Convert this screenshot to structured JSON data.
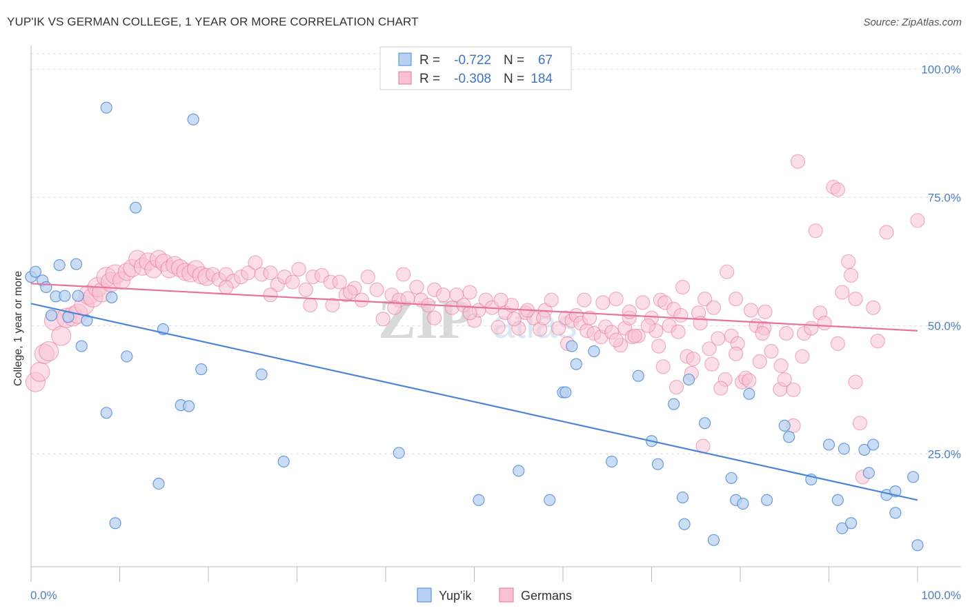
{
  "header": {
    "title": "YUP'IK VS GERMAN COLLEGE, 1 YEAR OR MORE CORRELATION CHART",
    "source": "Source: ZipAtlas.com"
  },
  "chart_data": {
    "type": "scatter",
    "title": "YUP'IK VS GERMAN COLLEGE, 1 YEAR OR MORE CORRELATION CHART",
    "xlabel": "",
    "ylabel": "College, 1 year or more",
    "xlim": [
      0,
      100
    ],
    "ylim": [
      3,
      103
    ],
    "x_tick_labels": [
      "0.0%",
      "100.0%"
    ],
    "y_ticks": [
      {
        "value": 25,
        "label": "25.0%"
      },
      {
        "value": 50,
        "label": "50.0%"
      },
      {
        "value": 75,
        "label": "75.0%"
      },
      {
        "value": 100,
        "label": "100.0%"
      }
    ],
    "grid": "dashed horizontal",
    "legend_position": "bottom-center",
    "stats_box": [
      {
        "series": "Yup'ik",
        "r_label": "R =",
        "r": "-0.722",
        "n_label": "N =",
        "n": "67"
      },
      {
        "series": "Germans",
        "r_label": "R =",
        "r": "-0.308",
        "n_label": "N =",
        "n": "184"
      }
    ],
    "watermark": "ZIPatlas",
    "series": [
      {
        "name": "Yup'ik",
        "color": "#4a86d6",
        "fill": "#b8d1f2",
        "trend": {
          "x": [
            0,
            100
          ],
          "y": [
            54.3,
            16
          ]
        },
        "points": [
          [
            0,
            59.5
          ],
          [
            0.5,
            60.5
          ],
          [
            1.3,
            58.8
          ],
          [
            1.7,
            57.5
          ],
          [
            2.3,
            52
          ],
          [
            2.8,
            55.7
          ],
          [
            3.2,
            61.8
          ],
          [
            3.8,
            55.8
          ],
          [
            4.2,
            51.7
          ],
          [
            5.1,
            62
          ],
          [
            5.3,
            55.8
          ],
          [
            5.7,
            46
          ],
          [
            6.3,
            51
          ],
          [
            8.5,
            33
          ],
          [
            8.5,
            92.5
          ],
          [
            9.1,
            55.5
          ],
          [
            9.5,
            11.5
          ],
          [
            10.8,
            44
          ],
          [
            11.8,
            73
          ],
          [
            14.4,
            19.2
          ],
          [
            14.9,
            49.3
          ],
          [
            16.9,
            34.5
          ],
          [
            17.8,
            34.3
          ],
          [
            18.3,
            90.2
          ],
          [
            19.2,
            41.5
          ],
          [
            26,
            40.5
          ],
          [
            28.5,
            23.5
          ],
          [
            41.5,
            25.2
          ],
          [
            50.5,
            16
          ],
          [
            55,
            21.7
          ],
          [
            58.5,
            16
          ],
          [
            60,
            37
          ],
          [
            60.3,
            37
          ],
          [
            61,
            46
          ],
          [
            61.5,
            42.5
          ],
          [
            63.5,
            45
          ],
          [
            65.5,
            23.5
          ],
          [
            68.5,
            40.2
          ],
          [
            70,
            27.5
          ],
          [
            70.7,
            23
          ],
          [
            72.5,
            34.7
          ],
          [
            73.5,
            16.5
          ],
          [
            73.7,
            11.3
          ],
          [
            74.2,
            39.5
          ],
          [
            76,
            31
          ],
          [
            77,
            8.2
          ],
          [
            79,
            20.3
          ],
          [
            79.5,
            16
          ],
          [
            80.3,
            15.3
          ],
          [
            81,
            36.7
          ],
          [
            83,
            16
          ],
          [
            85,
            30.5
          ],
          [
            85.5,
            28.3
          ],
          [
            88,
            20
          ],
          [
            90,
            26.8
          ],
          [
            91,
            16
          ],
          [
            91.5,
            10.5
          ],
          [
            91.7,
            26
          ],
          [
            92.5,
            11.5
          ],
          [
            94,
            25.8
          ],
          [
            94.5,
            21.3
          ],
          [
            95,
            26.8
          ],
          [
            96.5,
            17
          ],
          [
            97.5,
            17.7
          ],
          [
            97.5,
            13.5
          ],
          [
            99.5,
            20.5
          ],
          [
            100,
            7.2
          ]
        ]
      },
      {
        "name": "Germans",
        "color": "#e7739b",
        "fill": "#f8c2d3",
        "trend": {
          "x": [
            0,
            100
          ],
          "y": [
            58.2,
            49
          ]
        },
        "points": [
          [
            0.5,
            39
          ],
          [
            1,
            41
          ],
          [
            1.5,
            44.5
          ],
          [
            2,
            45
          ],
          [
            2.6,
            51
          ],
          [
            3.4,
            48
          ],
          [
            4,
            51.5
          ],
          [
            4.7,
            51.8
          ],
          [
            5.3,
            52.3
          ],
          [
            6,
            54
          ],
          [
            6.5,
            56
          ],
          [
            7,
            55.5
          ],
          [
            7.5,
            57.5
          ],
          [
            8,
            56.5
          ],
          [
            8.5,
            59.5
          ],
          [
            9,
            58.5
          ],
          [
            9.5,
            60
          ],
          [
            10.2,
            58.8
          ],
          [
            10.8,
            60.5
          ],
          [
            11.4,
            61.2
          ],
          [
            12,
            63
          ],
          [
            12.6,
            61.5
          ],
          [
            13.2,
            62.5
          ],
          [
            13.8,
            61
          ],
          [
            14.4,
            63
          ],
          [
            15,
            62.3
          ],
          [
            15.6,
            61
          ],
          [
            16.2,
            61.8
          ],
          [
            16.8,
            61.2
          ],
          [
            17.4,
            60.5
          ],
          [
            18,
            60.2
          ],
          [
            18.6,
            61
          ],
          [
            19.2,
            59.8
          ],
          [
            19.8,
            59.5
          ],
          [
            20.5,
            60
          ],
          [
            21.2,
            59
          ],
          [
            22,
            60
          ],
          [
            22.8,
            58.7
          ],
          [
            23.7,
            59.5
          ],
          [
            24.5,
            60.3
          ],
          [
            25.3,
            62.3
          ],
          [
            26,
            60
          ],
          [
            27,
            60.3
          ],
          [
            27.8,
            58
          ],
          [
            28.6,
            59.5
          ],
          [
            29.5,
            58.5
          ],
          [
            30.2,
            61
          ],
          [
            31,
            57
          ],
          [
            31.8,
            59.5
          ],
          [
            32.8,
            59.8
          ],
          [
            33.8,
            58.5
          ],
          [
            34,
            54
          ],
          [
            34.8,
            58.5
          ],
          [
            35.5,
            56
          ],
          [
            36.5,
            57.3
          ],
          [
            37.3,
            55
          ],
          [
            38,
            59.5
          ],
          [
            39,
            57
          ],
          [
            39.7,
            51.3
          ],
          [
            40.7,
            56
          ],
          [
            41.5,
            55
          ],
          [
            42,
            60
          ],
          [
            42.5,
            55.3
          ],
          [
            43.5,
            57.5
          ],
          [
            44,
            55
          ],
          [
            44.8,
            54
          ],
          [
            45.5,
            57
          ],
          [
            46.5,
            56
          ],
          [
            47.5,
            53.5
          ],
          [
            48,
            56
          ],
          [
            48.8,
            54
          ],
          [
            49.5,
            56.5
          ],
          [
            50,
            51
          ],
          [
            50.5,
            53
          ],
          [
            51.3,
            55
          ],
          [
            52,
            53.5
          ],
          [
            52.7,
            49.7
          ],
          [
            53.5,
            52.5
          ],
          [
            54.2,
            54
          ],
          [
            55,
            49.5
          ],
          [
            55.8,
            52.5
          ],
          [
            56.7,
            51.5
          ],
          [
            57.4,
            49.3
          ],
          [
            58,
            53
          ],
          [
            58.7,
            55
          ],
          [
            59.5,
            49.5
          ],
          [
            60.3,
            51.5
          ],
          [
            61,
            51
          ],
          [
            61.5,
            52
          ],
          [
            62,
            50.5
          ],
          [
            62.7,
            49
          ],
          [
            63.5,
            48.5
          ],
          [
            64.3,
            47.8
          ],
          [
            64.8,
            49.8
          ],
          [
            65.5,
            48.7
          ],
          [
            66,
            55.2
          ],
          [
            66.5,
            46.2
          ],
          [
            67,
            49.5
          ],
          [
            67.5,
            51.5
          ],
          [
            67.8,
            47.8
          ],
          [
            68.5,
            48
          ],
          [
            69,
            54.5
          ],
          [
            70,
            51.5
          ],
          [
            70.5,
            49
          ],
          [
            71,
            55
          ],
          [
            71.5,
            54.5
          ],
          [
            72,
            50
          ],
          [
            72.5,
            53.2
          ],
          [
            73,
            48.8
          ],
          [
            73.5,
            57.5
          ],
          [
            74,
            44
          ],
          [
            74.5,
            40.7
          ],
          [
            75.3,
            52.5
          ],
          [
            76,
            55.2
          ],
          [
            76.5,
            45.5
          ],
          [
            77,
            53.5
          ],
          [
            78.3,
            39.5
          ],
          [
            78.5,
            60.5
          ],
          [
            79,
            48
          ],
          [
            79.5,
            55.2
          ],
          [
            80.2,
            39
          ],
          [
            80.6,
            39.8
          ],
          [
            81.2,
            53
          ],
          [
            81.8,
            50
          ],
          [
            82.2,
            43
          ],
          [
            82.7,
            49.5
          ],
          [
            83.5,
            45
          ],
          [
            84.5,
            37.6
          ],
          [
            85.2,
            48.5
          ],
          [
            86,
            30.5
          ],
          [
            86.5,
            82
          ],
          [
            87.2,
            48.5
          ],
          [
            88.5,
            68.5
          ],
          [
            89,
            52.5
          ],
          [
            90.5,
            77
          ],
          [
            91,
            76.5
          ],
          [
            91.5,
            56.5
          ],
          [
            92.2,
            62.5
          ],
          [
            92.5,
            59.8
          ],
          [
            93,
            55.2
          ],
          [
            93.5,
            31
          ],
          [
            93.8,
            20.5
          ],
          [
            95,
            53.5
          ],
          [
            96.5,
            68.2
          ],
          [
            100,
            70.5
          ],
          [
            53,
            55
          ],
          [
            56,
            53
          ],
          [
            60.5,
            46.5
          ],
          [
            63,
            51.5
          ],
          [
            66,
            47.2
          ],
          [
            67.5,
            52.7
          ],
          [
            69.6,
            50
          ],
          [
            71.3,
            42
          ],
          [
            72.8,
            38
          ],
          [
            74.7,
            43.5
          ],
          [
            75.8,
            26.5
          ],
          [
            76.8,
            42.5
          ],
          [
            77.8,
            37.8
          ],
          [
            79.7,
            46.5
          ],
          [
            81,
            39.3
          ],
          [
            82.8,
            52.7
          ],
          [
            84.6,
            42.2
          ],
          [
            86,
            37.5
          ],
          [
            88,
            49.5
          ],
          [
            22,
            57.5
          ],
          [
            27,
            56
          ],
          [
            31.5,
            54
          ],
          [
            36,
            56.5
          ],
          [
            41,
            53.5
          ],
          [
            45.5,
            51.5
          ],
          [
            49.5,
            52.5
          ],
          [
            54.5,
            51.3
          ],
          [
            57.8,
            51.5
          ],
          [
            62.4,
            55
          ],
          [
            64.5,
            54.5
          ],
          [
            68.1,
            48
          ],
          [
            70.8,
            46
          ],
          [
            73.3,
            52
          ],
          [
            75.5,
            50.5
          ],
          [
            77.5,
            47.5
          ],
          [
            79.5,
            44.5
          ],
          [
            82.5,
            48.5
          ],
          [
            85,
            39.5
          ],
          [
            87,
            44
          ],
          [
            89.5,
            50.5
          ],
          [
            91,
            46.5
          ],
          [
            93,
            39
          ],
          [
            95.5,
            47
          ]
        ]
      }
    ]
  },
  "legend": {
    "items": [
      {
        "label": "Yup'ik",
        "color": "#4a86d6",
        "fill": "#b8d1f2"
      },
      {
        "label": "Germans",
        "color": "#e7739b",
        "fill": "#f8c2d3"
      }
    ]
  }
}
